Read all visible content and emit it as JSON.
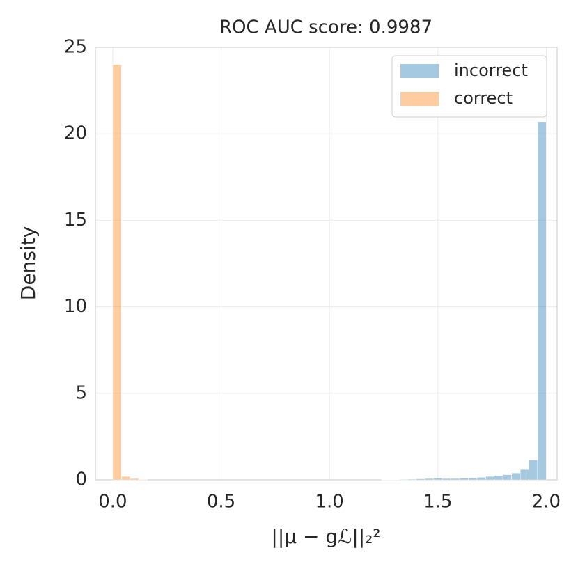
{
  "chart_data": {
    "type": "histogram",
    "title": "ROC AUC score: 0.9987",
    "xlabel": "||μ − gℒ||₂²",
    "ylabel": "Density",
    "bins": [
      0,
      0.04,
      0.08,
      0.12,
      0.16,
      0.2,
      0.24,
      0.28,
      0.32,
      0.36,
      0.4,
      0.44,
      0.48,
      0.52,
      0.56,
      0.6,
      0.64,
      0.68,
      0.72,
      0.76,
      0.8,
      0.84,
      0.88,
      0.92,
      0.96,
      1,
      1.04,
      1.08,
      1.12,
      1.16,
      1.2,
      1.24,
      1.28,
      1.32,
      1.36,
      1.4,
      1.44,
      1.48,
      1.52,
      1.56,
      1.6,
      1.64,
      1.68,
      1.72,
      1.76,
      1.8,
      1.84,
      1.88,
      1.92,
      1.96,
      2
    ],
    "series": [
      {
        "name": "incorrect",
        "color": "#1f77b4",
        "values": [
          0,
          0,
          0,
          0,
          0,
          0,
          0,
          0,
          0,
          0,
          0,
          0,
          0,
          0,
          0,
          0,
          0,
          0,
          0,
          0,
          0,
          0,
          0,
          0,
          0,
          0,
          0,
          0,
          0,
          0,
          0,
          0.02,
          0.02,
          0.03,
          0.04,
          0.06,
          0.08,
          0.1,
          0.08,
          0.08,
          0.1,
          0.12,
          0.15,
          0.2,
          0.25,
          0.3,
          0.4,
          0.6,
          1.15,
          20.7
        ]
      },
      {
        "name": "correct",
        "color": "#ff7f0e",
        "values": [
          24,
          0.2,
          0.08,
          0.03,
          0,
          0,
          0,
          0,
          0,
          0,
          0,
          0,
          0,
          0,
          0,
          0,
          0,
          0,
          0,
          0,
          0,
          0,
          0,
          0,
          0,
          0,
          0,
          0,
          0,
          0,
          0,
          0,
          0,
          0,
          0,
          0,
          0,
          0,
          0,
          0,
          0,
          0,
          0,
          0,
          0,
          0,
          0,
          0,
          0,
          0
        ]
      }
    ],
    "xlim": [
      -0.08,
      2.05
    ],
    "ylim": [
      0,
      25
    ],
    "xticks": [
      {
        "value": 0,
        "label": "0.0"
      },
      {
        "value": 0.5,
        "label": "0.5"
      },
      {
        "value": 1,
        "label": "1.0"
      },
      {
        "value": 1.5,
        "label": "1.5"
      },
      {
        "value": 2,
        "label": "2.0"
      }
    ],
    "yticks": [
      0,
      5,
      10,
      15,
      20,
      25
    ],
    "grid": true,
    "legend": "upper right"
  }
}
